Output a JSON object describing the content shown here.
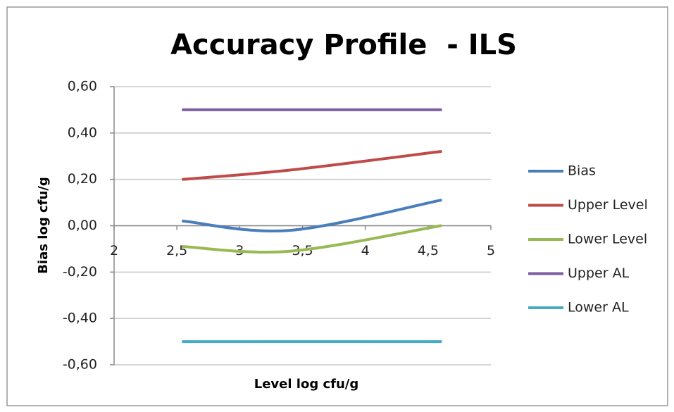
{
  "chart_data": {
    "type": "line",
    "title": "Accuracy Profile  - ILS",
    "xlabel": "Level log cfu/g",
    "ylabel": "Bias log cfu/g",
    "x": [
      2.55,
      3.4,
      4.6
    ],
    "series": [
      {
        "name": "Bias",
        "color": "#4a7ebb",
        "values": [
          0.02,
          -0.02,
          0.11
        ]
      },
      {
        "name": "Upper Level",
        "color": "#be4b48",
        "values": [
          0.2,
          0.24,
          0.32
        ]
      },
      {
        "name": "Lower Level",
        "color": "#98b954",
        "values": [
          -0.09,
          -0.11,
          0.0
        ]
      },
      {
        "name": "Upper AL",
        "color": "#7d5fa0",
        "values": [
          0.5,
          0.5,
          0.5
        ]
      },
      {
        "name": "Lower AL",
        "color": "#46aac5",
        "values": [
          -0.5,
          -0.5,
          -0.5
        ]
      }
    ],
    "xlim": [
      2,
      5
    ],
    "xticks": [
      2,
      {
        "value": 2.5,
        "label": "2,5"
      },
      3,
      {
        "value": 3.5,
        "label": "3,5"
      },
      4,
      {
        "value": 4.5,
        "label": "4,5"
      },
      5
    ],
    "ylim": [
      -0.6,
      0.6
    ],
    "yticks": [
      {
        "value": -0.6,
        "label": "-0,60"
      },
      {
        "value": -0.4,
        "label": "-0,40"
      },
      {
        "value": -0.2,
        "label": "-0,20"
      },
      {
        "value": 0,
        "label": "0,00"
      },
      {
        "value": 0.2,
        "label": "0,20"
      },
      {
        "value": 0.4,
        "label": "0,40"
      },
      {
        "value": 0.6,
        "label": "0,60"
      }
    ],
    "grid": true,
    "smooth": true,
    "legend": "right"
  }
}
